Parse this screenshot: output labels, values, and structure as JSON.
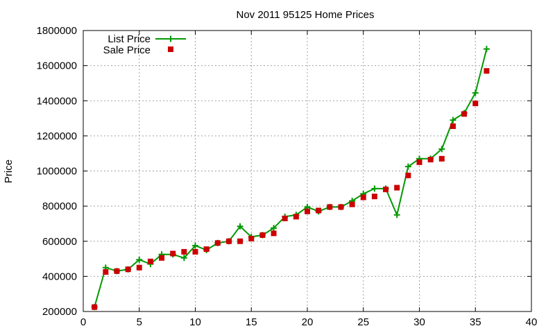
{
  "chart_data": {
    "type": "line",
    "title": "Nov 2011 95125 Home Prices",
    "xlabel": "",
    "ylabel": "Price",
    "xlim": [
      0,
      40
    ],
    "ylim": [
      200000,
      1800000
    ],
    "xticks": [
      0,
      5,
      10,
      15,
      20,
      25,
      30,
      35,
      40
    ],
    "xtick_labels": [
      "0",
      "5",
      "10",
      "15",
      "20",
      "25",
      "30",
      "35",
      "40"
    ],
    "yticks": [
      200000,
      400000,
      600000,
      800000,
      1000000,
      1200000,
      1400000,
      1600000,
      1800000
    ],
    "ytick_labels": [
      "200000",
      "400000",
      "600000",
      "800000",
      "1000000",
      "1200000",
      "1400000",
      "1600000",
      "1800000"
    ],
    "grid": true,
    "legend_position": "top-left",
    "series": [
      {
        "name": "List Price",
        "style": "line-with-plus-markers",
        "color": "#009900",
        "x": [
          1,
          2,
          3,
          4,
          5,
          6,
          7,
          8,
          9,
          10,
          11,
          12,
          13,
          14,
          15,
          16,
          17,
          18,
          19,
          20,
          21,
          22,
          23,
          24,
          25,
          26,
          27,
          28,
          29,
          30,
          31,
          32,
          33,
          34,
          35,
          36
        ],
        "y": [
          225000,
          450000,
          430000,
          440000,
          495000,
          470000,
          525000,
          525000,
          505000,
          575000,
          550000,
          590000,
          600000,
          685000,
          625000,
          635000,
          675000,
          740000,
          750000,
          795000,
          770000,
          795000,
          795000,
          830000,
          870000,
          900000,
          900000,
          750000,
          1025000,
          1070000,
          1070000,
          1125000,
          1290000,
          1330000,
          1445000,
          1695000
        ]
      },
      {
        "name": "Sale Price",
        "style": "square-markers",
        "color": "#cc0000",
        "x": [
          1,
          2,
          3,
          4,
          5,
          6,
          7,
          8,
          9,
          10,
          11,
          12,
          13,
          14,
          15,
          16,
          17,
          18,
          19,
          20,
          21,
          22,
          23,
          24,
          25,
          26,
          27,
          28,
          29,
          30,
          31,
          32,
          33,
          34,
          35,
          36
        ],
        "y": [
          225000,
          425000,
          430000,
          440000,
          450000,
          485000,
          505000,
          530000,
          540000,
          540000,
          555000,
          590000,
          600000,
          600000,
          615000,
          635000,
          645000,
          730000,
          740000,
          770000,
          775000,
          795000,
          795000,
          810000,
          850000,
          855000,
          895000,
          905000,
          975000,
          1050000,
          1065000,
          1070000,
          1255000,
          1325000,
          1385000,
          1570000
        ]
      }
    ]
  }
}
